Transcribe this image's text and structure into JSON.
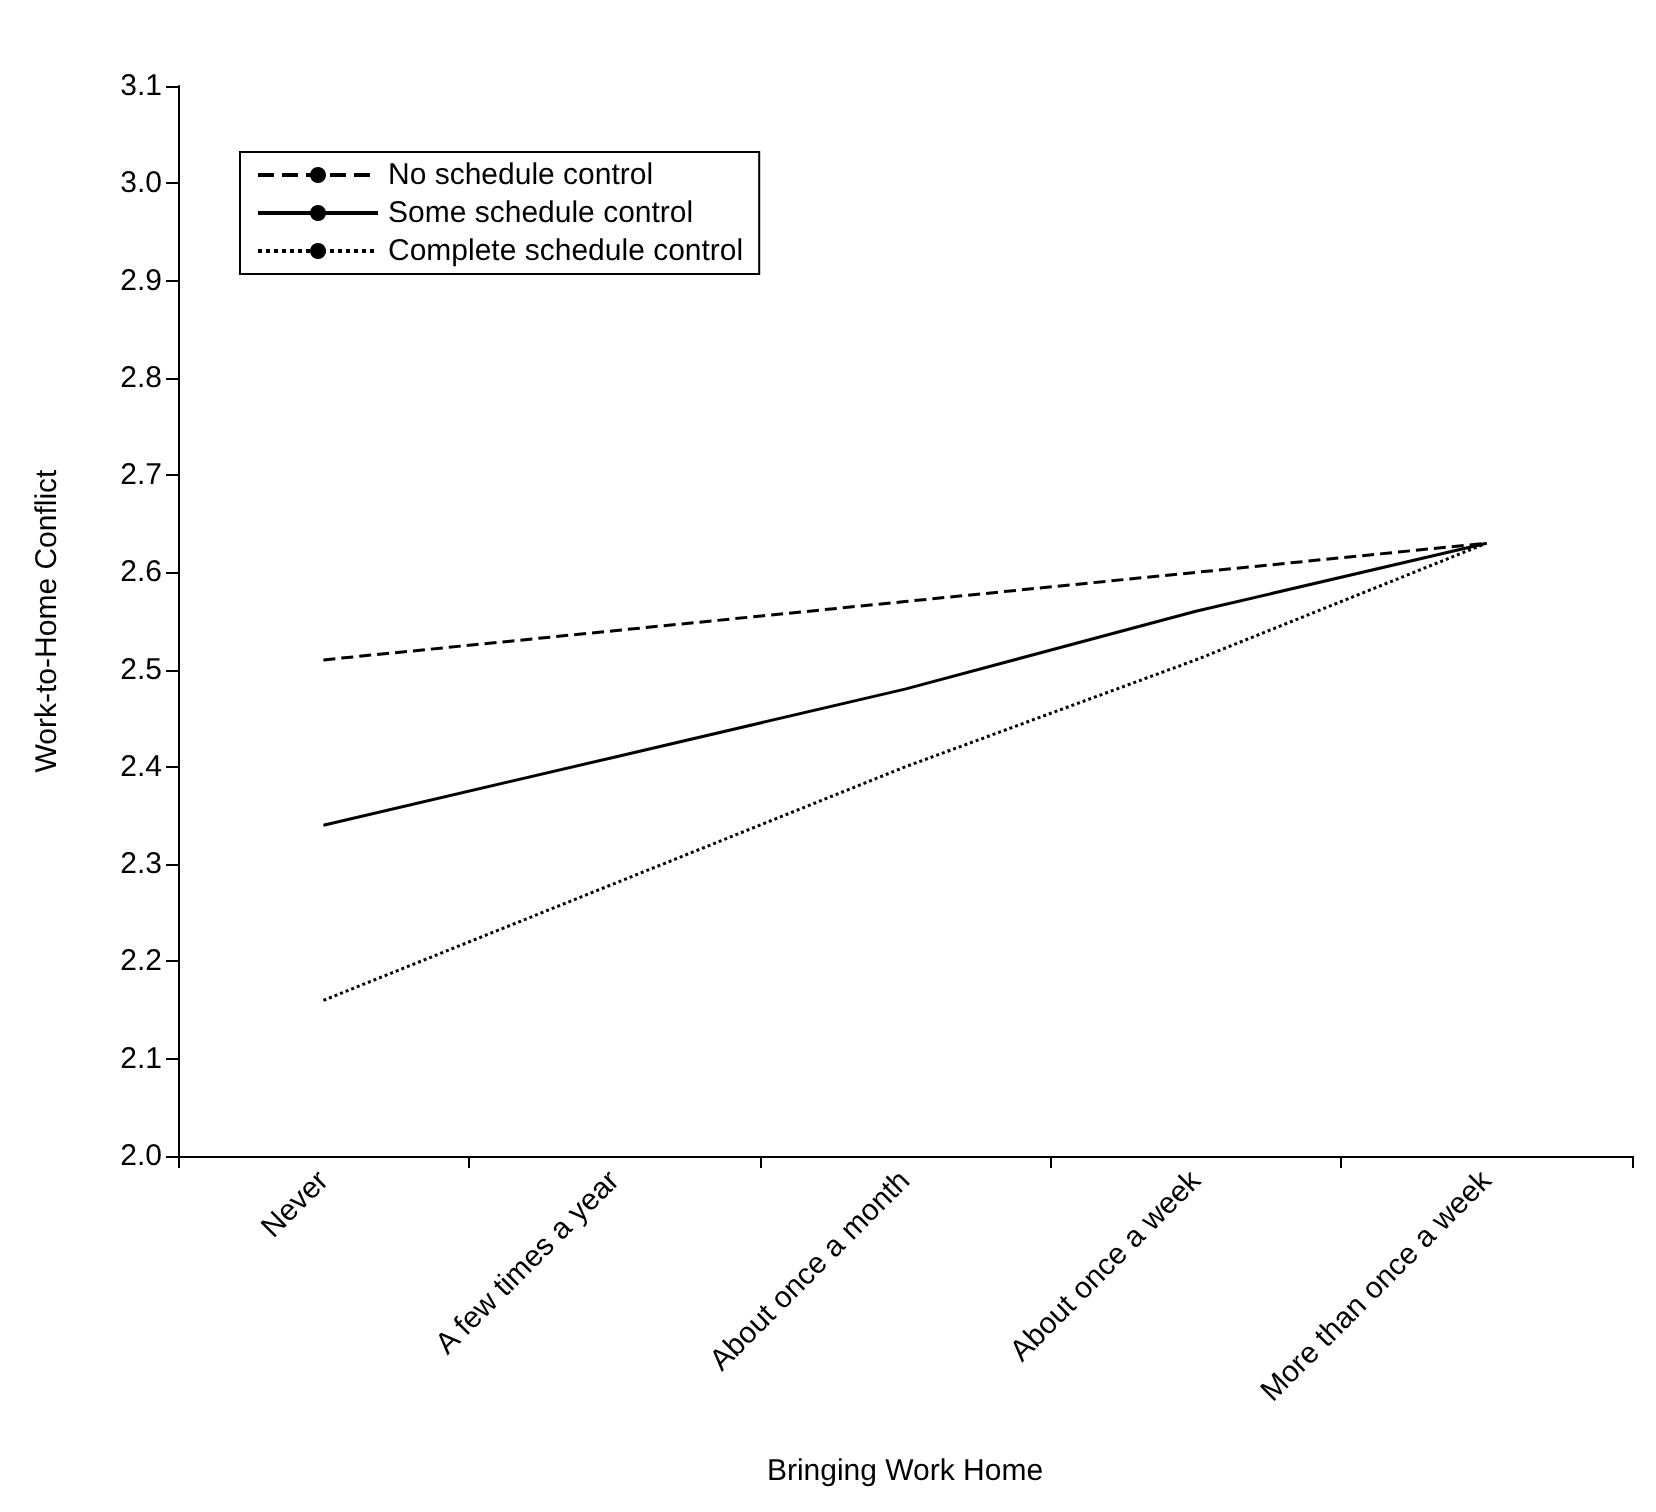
{
  "chart_data": {
    "type": "line",
    "xlabel": "Bringing Work Home",
    "ylabel": "Work-to-Home Conflict",
    "categories": [
      "Never",
      "A few times a year",
      "About once a month",
      "About once a week",
      "More than once a week"
    ],
    "series": [
      {
        "name": "No schedule control",
        "color": "#000000",
        "line_style": "dashed",
        "values": [
          2.51,
          2.54,
          2.57,
          2.6,
          2.63
        ]
      },
      {
        "name": "Some schedule control",
        "color": "#000000",
        "line_style": "solid",
        "values": [
          2.34,
          2.41,
          2.48,
          2.56,
          2.63
        ]
      },
      {
        "name": "Complete schedule control",
        "color": "#000000",
        "line_style": "dotted",
        "values": [
          2.16,
          2.28,
          2.4,
          2.51,
          2.63
        ]
      }
    ],
    "ylim": [
      2.0,
      3.1
    ],
    "yticks": [
      {
        "value": 2,
        "label": "2.0"
      },
      2.1,
      2.2,
      2.3,
      2.4,
      2.5,
      2.6,
      2.7,
      2.8,
      2.9,
      {
        "value": 3,
        "label": "3.0"
      },
      3.1
    ],
    "grid": false,
    "legend": "top left",
    "marker": "none"
  }
}
